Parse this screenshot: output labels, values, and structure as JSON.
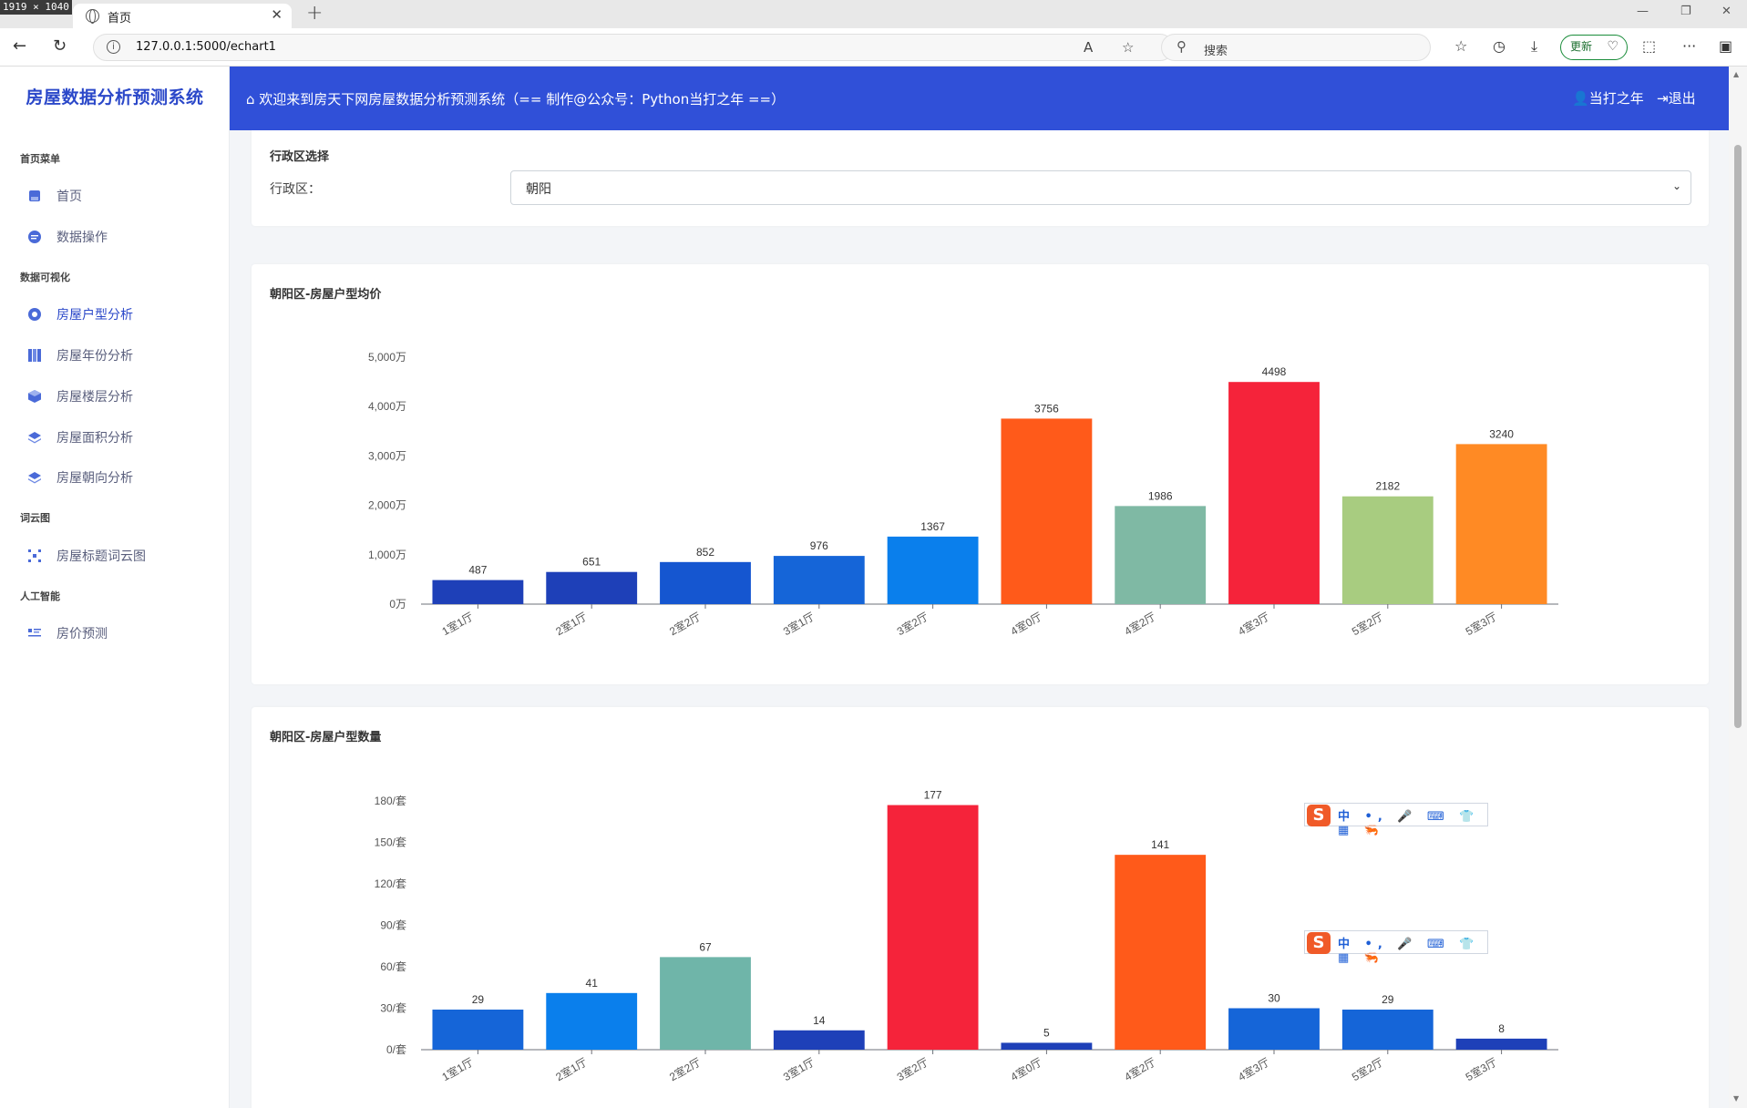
{
  "browser": {
    "dimensions_badge": "1919 × 1040",
    "tab_title": "首页",
    "url": "127.0.0.1:5000/echart1",
    "search_placeholder": "搜索",
    "update_label": "更新"
  },
  "app": {
    "brand": "房屋数据分析预测系统",
    "welcome": "欢迎来到房天下网房屋数据分析预测系统（== 制作@公众号：Python当打之年 ==）",
    "user": "当打之年",
    "logout": "退出"
  },
  "sidebar": {
    "sections": [
      {
        "title": "首页菜单",
        "items": [
          {
            "label": "首页",
            "icon": "home-icon",
            "active": false
          },
          {
            "label": "数据操作",
            "icon": "chat-icon",
            "active": false
          }
        ]
      },
      {
        "title": "数据可视化",
        "items": [
          {
            "label": "房屋户型分析",
            "icon": "target-icon",
            "active": true
          },
          {
            "label": "房屋年份分析",
            "icon": "columns-icon",
            "active": false
          },
          {
            "label": "房屋楼层分析",
            "icon": "cube-icon",
            "active": false
          },
          {
            "label": "房屋面积分析",
            "icon": "layers-icon",
            "active": false
          },
          {
            "label": "房屋朝向分析",
            "icon": "layers-icon",
            "active": false
          }
        ]
      },
      {
        "title": "词云图",
        "items": [
          {
            "label": "房屋标题词云图",
            "icon": "cloud-grid-icon",
            "active": false
          }
        ]
      },
      {
        "title": "人工智能",
        "items": [
          {
            "label": "房价预测",
            "icon": "list-icon",
            "active": false
          }
        ]
      }
    ]
  },
  "district_select": {
    "card_title": "行政区选择",
    "label": "行政区：",
    "value": "朝阳"
  },
  "ime": {
    "logo": "S",
    "items": "中 •, 🎤 ⌨ 👕 ▦ 🦐"
  },
  "colors": {
    "brand": "#2b48c9",
    "topbar": "#3050d8",
    "bar_palette": [
      "#1e40b8",
      "#1565d8",
      "#0a7fec",
      "#ff5a1a",
      "#7fb9a4",
      "#f5233a",
      "#a8cc80",
      "#ff8a24",
      "#6fb5a9"
    ]
  },
  "chart_data": [
    {
      "type": "bar",
      "title": "朝阳区-房屋户型均价",
      "categories": [
        "1室1厅",
        "2室1厅",
        "2室2厅",
        "3室1厅",
        "3室2厅",
        "4室0厅",
        "4室2厅",
        "4室3厅",
        "5室2厅",
        "5室3厅"
      ],
      "values": [
        487,
        651,
        852,
        976,
        1367,
        3756,
        1986,
        4498,
        2182,
        3240
      ],
      "colors": [
        "#1e40b8",
        "#1e40b8",
        "#1556d0",
        "#1565d8",
        "#0a7fec",
        "#ff5a1a",
        "#7fb9a4",
        "#f5233a",
        "#a8cc80",
        "#ff8a24"
      ],
      "ylim": [
        0,
        5000
      ],
      "yticks": [
        0,
        1000,
        2000,
        3000,
        4000,
        5000
      ],
      "ytick_labels": [
        "0万",
        "1,000万",
        "2,000万",
        "3,000万",
        "4,000万",
        "5,000万"
      ],
      "grid": false
    },
    {
      "type": "bar",
      "title": "朝阳区-房屋户型数量",
      "categories": [
        "1室1厅",
        "2室1厅",
        "2室2厅",
        "3室1厅",
        "3室2厅",
        "4室0厅",
        "4室2厅",
        "4室3厅",
        "5室2厅",
        "5室3厅"
      ],
      "values": [
        29,
        41,
        67,
        14,
        177,
        5,
        141,
        30,
        29,
        8
      ],
      "colors": [
        "#1565d8",
        "#0a7fec",
        "#6fb5a9",
        "#1e40b8",
        "#f5233a",
        "#1e40b8",
        "#ff5a1a",
        "#1565d8",
        "#1565d8",
        "#1e40b8"
      ],
      "ylim": [
        0,
        180
      ],
      "yticks": [
        0,
        30,
        60,
        90,
        120,
        150,
        180
      ],
      "ytick_labels": [
        "0/套",
        "30/套",
        "60/套",
        "90/套",
        "120/套",
        "150/套",
        "180/套"
      ],
      "grid": false
    }
  ]
}
